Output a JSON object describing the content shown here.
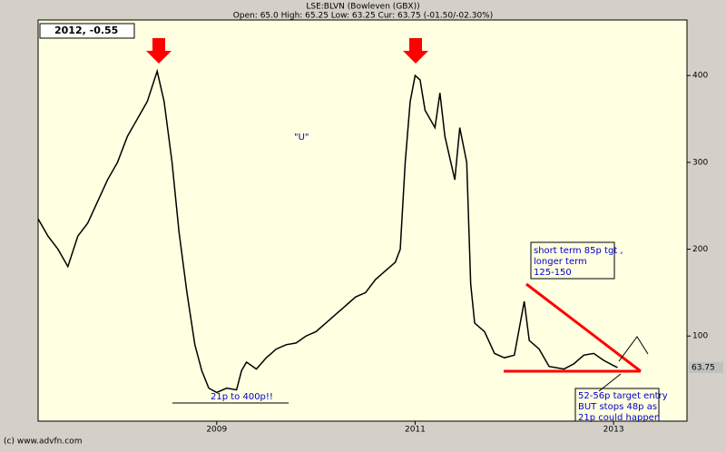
{
  "chart_data": {
    "type": "line",
    "title": "LSE:BLVN (Bowleven (GBX))",
    "subtitle": "Open: 65.0 High: 65.25 Low: 63.25 Cur: 63.75 (-01.50/-02.30%)",
    "info_box": "2012, -0.55",
    "footer": "(c) www.advfn.com",
    "current": 63.75,
    "annotations": {
      "u": "\"U\"",
      "range": "21p to 400p!!",
      "target": [
        "short term 85p tgt ,",
        "longer term",
        "125-150"
      ],
      "entry": [
        "52-56p target entry",
        "BUT stops 48p as",
        "21p could happen"
      ]
    },
    "xlim": [
      2007.2,
      2013.74
    ],
    "xticks": [
      2009,
      2011,
      2013
    ],
    "ylim": [
      2,
      464
    ],
    "yticks": [
      100,
      200,
      300,
      400
    ],
    "series": [
      {
        "color": "#000000",
        "x": [
          2007.2,
          2007.3,
          2007.4,
          2007.5,
          2007.6,
          2007.7,
          2007.8,
          2007.9,
          2008.0,
          2008.1,
          2008.2,
          2008.3,
          2008.4,
          2008.47,
          2008.55,
          2008.62,
          2008.7,
          2008.78,
          2008.85,
          2008.92,
          2009.0,
          2009.1,
          2009.2,
          2009.25,
          2009.3,
          2009.4,
          2009.5,
          2009.6,
          2009.7,
          2009.8,
          2009.9,
          2010.0,
          2010.1,
          2010.2,
          2010.3,
          2010.4,
          2010.5,
          2010.6,
          2010.7,
          2010.8,
          2010.85,
          2010.9,
          2010.95,
          2011.0,
          2011.05,
          2011.1,
          2011.2,
          2011.25,
          2011.3,
          2011.4,
          2011.45,
          2011.52,
          2011.56,
          2011.6,
          2011.7,
          2011.8,
          2011.9,
          2012.0,
          2012.1,
          2012.15,
          2012.25,
          2012.35,
          2012.5,
          2012.6,
          2012.7,
          2012.8,
          2012.9,
          2013.0,
          2013.04
        ],
        "values": [
          235,
          215,
          200,
          180,
          215,
          230,
          255,
          280,
          300,
          330,
          350,
          370,
          405,
          370,
          300,
          220,
          150,
          90,
          60,
          40,
          35,
          40,
          38,
          60,
          70,
          62,
          75,
          85,
          90,
          92,
          100,
          105,
          115,
          125,
          135,
          145,
          150,
          165,
          175,
          185,
          200,
          300,
          370,
          400,
          395,
          360,
          340,
          380,
          330,
          280,
          340,
          300,
          160,
          115,
          105,
          80,
          75,
          78,
          140,
          95,
          85,
          65,
          62,
          68,
          78,
          80,
          72,
          66,
          63.75
        ]
      }
    ]
  }
}
